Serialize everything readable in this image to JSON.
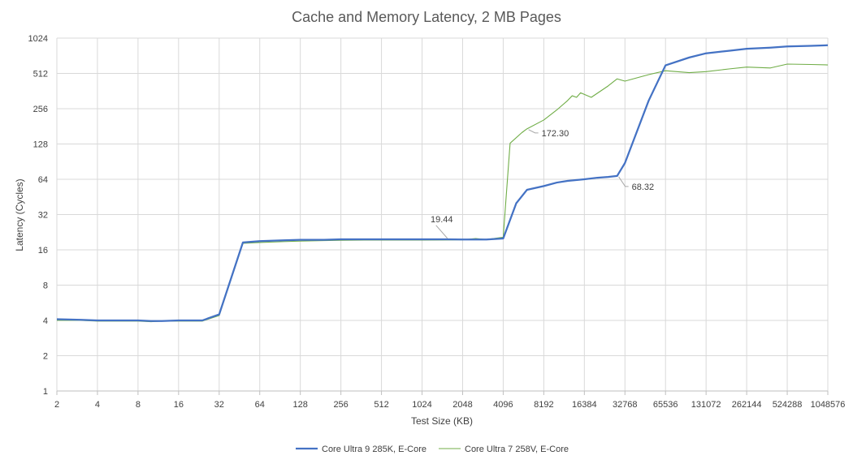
{
  "chart_data": {
    "type": "line",
    "title": "Cache and Memory Latency, 2 MB Pages",
    "xlabel": "Test Size (KB)",
    "ylabel": "Latency (Cycles)",
    "x_scale": "log2",
    "y_scale": "log2",
    "xlim": [
      2,
      1048576
    ],
    "ylim": [
      1,
      1024
    ],
    "x_ticks": [
      "2",
      "4",
      "8",
      "16",
      "32",
      "64",
      "128",
      "256",
      "512",
      "1024",
      "2048",
      "4096",
      "8192",
      "16384",
      "32768",
      "65536",
      "131072",
      "262144",
      "524288",
      "1048576"
    ],
    "y_ticks": [
      "1",
      "2",
      "4",
      "8",
      "16",
      "32",
      "64",
      "128",
      "256",
      "512",
      "1024"
    ],
    "grid": true,
    "legend_position": "bottom",
    "series": [
      {
        "name": "Core Ultra 9 285K, E-Core",
        "color": "#4472c4",
        "points": [
          [
            2,
            4.1
          ],
          [
            3,
            4.05
          ],
          [
            4,
            4.0
          ],
          [
            6,
            4.0
          ],
          [
            8,
            4.0
          ],
          [
            10,
            3.95
          ],
          [
            12,
            3.95
          ],
          [
            16,
            4.0
          ],
          [
            24,
            4.0
          ],
          [
            32,
            4.5
          ],
          [
            48,
            18.5
          ],
          [
            64,
            19.0
          ],
          [
            96,
            19.3
          ],
          [
            128,
            19.5
          ],
          [
            192,
            19.5
          ],
          [
            256,
            19.7
          ],
          [
            384,
            19.7
          ],
          [
            512,
            19.7
          ],
          [
            768,
            19.7
          ],
          [
            1024,
            19.7
          ],
          [
            1536,
            19.7
          ],
          [
            2048,
            19.6
          ],
          [
            3072,
            19.6
          ],
          [
            4096,
            20.0
          ],
          [
            5120,
            40
          ],
          [
            6144,
            52
          ],
          [
            8192,
            56
          ],
          [
            10240,
            60
          ],
          [
            12288,
            62
          ],
          [
            16384,
            64
          ],
          [
            20480,
            66
          ],
          [
            24576,
            67
          ],
          [
            28672,
            68.32
          ],
          [
            32768,
            88
          ],
          [
            49152,
            300
          ],
          [
            65536,
            600
          ],
          [
            98304,
            700
          ],
          [
            131072,
            760
          ],
          [
            196608,
            800
          ],
          [
            262144,
            830
          ],
          [
            393216,
            850
          ],
          [
            524288,
            870
          ],
          [
            786432,
            880
          ],
          [
            1048576,
            890
          ]
        ]
      },
      {
        "name": "Core Ultra 7 258V, E-Core",
        "color": "#70ad47",
        "points": [
          [
            2,
            4.0
          ],
          [
            3,
            4.0
          ],
          [
            4,
            3.95
          ],
          [
            6,
            3.95
          ],
          [
            8,
            3.95
          ],
          [
            10,
            3.9
          ],
          [
            12,
            3.95
          ],
          [
            16,
            3.95
          ],
          [
            24,
            3.95
          ],
          [
            32,
            4.4
          ],
          [
            48,
            18.2
          ],
          [
            64,
            18.5
          ],
          [
            96,
            18.8
          ],
          [
            128,
            19.0
          ],
          [
            192,
            19.2
          ],
          [
            256,
            19.3
          ],
          [
            384,
            19.4
          ],
          [
            512,
            19.4
          ],
          [
            768,
            19.4
          ],
          [
            1024,
            19.4
          ],
          [
            1536,
            19.44
          ],
          [
            2048,
            19.5
          ],
          [
            2560,
            20.0
          ],
          [
            3072,
            19.6
          ],
          [
            4096,
            20.5
          ],
          [
            4608,
            130
          ],
          [
            5632,
            160
          ],
          [
            6144,
            172.3
          ],
          [
            8192,
            205
          ],
          [
            10240,
            250
          ],
          [
            12288,
            300
          ],
          [
            13312,
            330
          ],
          [
            14336,
            320
          ],
          [
            15360,
            350
          ],
          [
            18432,
            320
          ],
          [
            24576,
            400
          ],
          [
            28672,
            460
          ],
          [
            32768,
            440
          ],
          [
            49152,
            500
          ],
          [
            65536,
            540
          ],
          [
            98304,
            520
          ],
          [
            131072,
            530
          ],
          [
            196608,
            560
          ],
          [
            262144,
            580
          ],
          [
            393216,
            570
          ],
          [
            524288,
            615
          ],
          [
            786432,
            610
          ],
          [
            1048576,
            605
          ]
        ]
      }
    ],
    "annotations": [
      {
        "text": "172.30",
        "x": 6144,
        "y": 172.3,
        "series": "Core Ultra 7 258V, E-Core"
      },
      {
        "text": "68.32",
        "x": 28672,
        "y": 68.32,
        "series": "Core Ultra 9 285K, E-Core"
      },
      {
        "text": "19.44",
        "x": 1536,
        "y": 19.44,
        "series": "Core Ultra 7 258V, E-Core"
      }
    ]
  }
}
